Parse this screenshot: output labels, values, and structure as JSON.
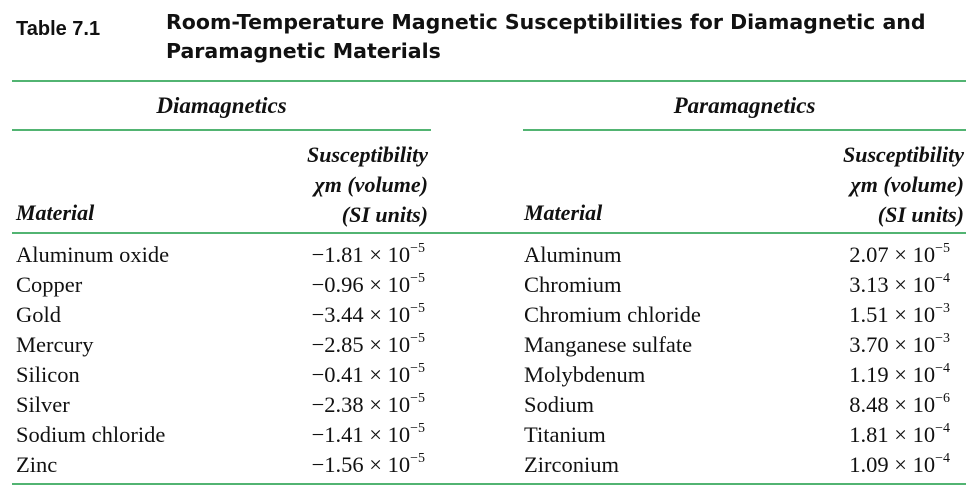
{
  "table_label": "Table 7.1",
  "title_line1": "Room-Temperature Magnetic Susceptibilities for Diamagnetic and",
  "title_line2": "Paramagnetic Materials",
  "left": {
    "group": "Diamagnetics",
    "col_material": "Material",
    "col_sus_1": "Susceptibility",
    "col_sus_2": "χm (volume)",
    "col_sus_3": "(SI units)",
    "rows": [
      {
        "material": "Aluminum oxide",
        "mantissa": "−1.81 × 10",
        "exponent": "−5"
      },
      {
        "material": "Copper",
        "mantissa": "−0.96 × 10",
        "exponent": "−5"
      },
      {
        "material": "Gold",
        "mantissa": "−3.44 × 10",
        "exponent": "−5"
      },
      {
        "material": "Mercury",
        "mantissa": "−2.85 × 10",
        "exponent": "−5"
      },
      {
        "material": "Silicon",
        "mantissa": "−0.41 × 10",
        "exponent": "−5"
      },
      {
        "material": "Silver",
        "mantissa": "−2.38 × 10",
        "exponent": "−5"
      },
      {
        "material": "Sodium chloride",
        "mantissa": "−1.41 × 10",
        "exponent": "−5"
      },
      {
        "material": "Zinc",
        "mantissa": "−1.56 × 10",
        "exponent": "−5"
      }
    ]
  },
  "right": {
    "group": "Paramagnetics",
    "col_material": "Material",
    "col_sus_1": "Susceptibility",
    "col_sus_2": "χm (volume)",
    "col_sus_3": "(SI units)",
    "rows": [
      {
        "material": "Aluminum",
        "mantissa": "2.07 × 10",
        "exponent": "−5"
      },
      {
        "material": "Chromium",
        "mantissa": "3.13 × 10",
        "exponent": "−4"
      },
      {
        "material": "Chromium chloride",
        "mantissa": "1.51 × 10",
        "exponent": "−3"
      },
      {
        "material": "Manganese sulfate",
        "mantissa": "3.70 × 10",
        "exponent": "−3"
      },
      {
        "material": "Molybdenum",
        "mantissa": "1.19 × 10",
        "exponent": "−4"
      },
      {
        "material": "Sodium",
        "mantissa": "8.48 × 10",
        "exponent": "−6"
      },
      {
        "material": "Titanium",
        "mantissa": "1.81 × 10",
        "exponent": "−4"
      },
      {
        "material": "Zirconium",
        "mantissa": "1.09 × 10",
        "exponent": "−4"
      }
    ]
  },
  "colors": {
    "rule": "#52b472",
    "text": "#111111"
  }
}
